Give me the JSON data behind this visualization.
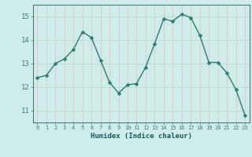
{
  "x": [
    0,
    1,
    2,
    3,
    4,
    5,
    6,
    7,
    8,
    9,
    10,
    11,
    12,
    13,
    14,
    15,
    16,
    17,
    18,
    19,
    20,
    21,
    22,
    23
  ],
  "y": [
    12.4,
    12.5,
    13.0,
    13.2,
    13.6,
    14.35,
    14.1,
    13.15,
    12.2,
    11.75,
    12.1,
    12.15,
    12.85,
    13.85,
    14.9,
    14.8,
    15.1,
    14.95,
    14.2,
    13.05,
    13.05,
    12.6,
    11.9,
    10.8
  ],
  "xlabel": "Humidex (Indice chaleur)",
  "ylim": [
    10.5,
    15.5
  ],
  "yticks": [
    11,
    12,
    13,
    14,
    15
  ],
  "xticks": [
    0,
    1,
    2,
    3,
    4,
    5,
    6,
    7,
    8,
    9,
    10,
    11,
    12,
    13,
    14,
    15,
    16,
    17,
    18,
    19,
    20,
    21,
    22,
    23
  ],
  "bg_color": "#ceecea",
  "line_color": "#2e7d6e",
  "marker_color": "#2e7d6e",
  "grid_color_v": "#e8c0c0",
  "grid_color_h": "#b8d8d4",
  "axis_color": "#4a7a76",
  "tick_label_color": "#1a5a56",
  "xlabel_color": "#1a5a56"
}
